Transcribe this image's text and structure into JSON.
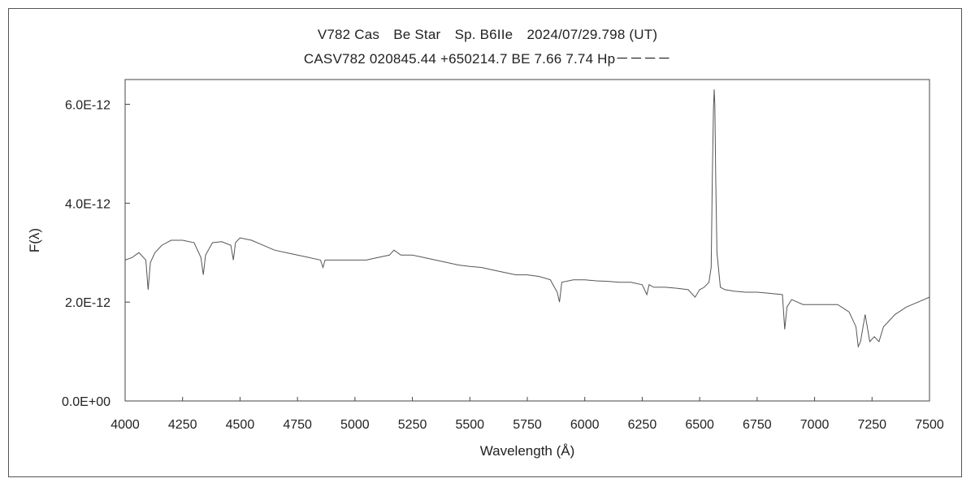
{
  "chart_data": {
    "type": "line",
    "title": "V782 Cas　Be Star　Sp. B6IIe　2024/07/29.798 (UT)",
    "subtitle": "CASV782 020845.44 +650214.7 BE 7.66 7.74 Hp－－－－",
    "xlabel": "Wavelength (Å)",
    "ylabel": "F(λ)",
    "xlim": [
      4000,
      7500
    ],
    "ylim": [
      0,
      6.5e-12
    ],
    "x_ticks": [
      4000,
      4250,
      4500,
      4750,
      5000,
      5250,
      5500,
      5750,
      6000,
      6250,
      6500,
      6750,
      7000,
      7250,
      7500
    ],
    "y_ticks": [
      0,
      2e-12,
      4e-12,
      6e-12
    ],
    "y_tick_labels": [
      "0.0E+00",
      "2.0E-12",
      "4.0E-12",
      "6.0E-12"
    ],
    "grid": false,
    "line_color": "#555555",
    "series": [
      {
        "x": [
          4000,
          4030,
          4060,
          4090,
          4100,
          4110,
          4130,
          4160,
          4200,
          4250,
          4300,
          4330,
          4340,
          4350,
          4380,
          4420,
          4460,
          4471,
          4480,
          4500,
          4550,
          4600,
          4650,
          4700,
          4750,
          4800,
          4850,
          4861,
          4870,
          4900,
          4950,
          5000,
          5050,
          5100,
          5150,
          5170,
          5200,
          5250,
          5300,
          5350,
          5400,
          5450,
          5500,
          5550,
          5600,
          5650,
          5700,
          5750,
          5800,
          5850,
          5880,
          5890,
          5900,
          5950,
          6000,
          6050,
          6100,
          6150,
          6200,
          6250,
          6270,
          6280,
          6300,
          6350,
          6400,
          6450,
          6480,
          6500,
          6520,
          6540,
          6550,
          6555,
          6560,
          6563,
          6566,
          6570,
          6575,
          6590,
          6610,
          6650,
          6700,
          6750,
          6800,
          6860,
          6870,
          6880,
          6900,
          6950,
          7000,
          7050,
          7100,
          7150,
          7180,
          7190,
          7200,
          7220,
          7240,
          7260,
          7280,
          7300,
          7350,
          7400,
          7450,
          7500
        ],
        "y": [
          2.85e-12,
          2.9e-12,
          3e-12,
          2.85e-12,
          2.25e-12,
          2.8e-12,
          3e-12,
          3.15e-12,
          3.25e-12,
          3.25e-12,
          3.2e-12,
          2.9e-12,
          2.55e-12,
          2.95e-12,
          3.2e-12,
          3.22e-12,
          3.15e-12,
          2.85e-12,
          3.2e-12,
          3.3e-12,
          3.25e-12,
          3.15e-12,
          3.05e-12,
          3e-12,
          2.95e-12,
          2.9e-12,
          2.85e-12,
          2.7e-12,
          2.85e-12,
          2.85e-12,
          2.85e-12,
          2.85e-12,
          2.85e-12,
          2.9e-12,
          2.95e-12,
          3.05e-12,
          2.95e-12,
          2.95e-12,
          2.9e-12,
          2.85e-12,
          2.8e-12,
          2.75e-12,
          2.72e-12,
          2.7e-12,
          2.65e-12,
          2.6e-12,
          2.55e-12,
          2.55e-12,
          2.52e-12,
          2.45e-12,
          2.2e-12,
          2e-12,
          2.4e-12,
          2.45e-12,
          2.45e-12,
          2.43e-12,
          2.42e-12,
          2.4e-12,
          2.4e-12,
          2.35e-12,
          2.15e-12,
          2.35e-12,
          2.3e-12,
          2.3e-12,
          2.28e-12,
          2.25e-12,
          2.1e-12,
          2.25e-12,
          2.3e-12,
          2.4e-12,
          2.7e-12,
          4.5e-12,
          5.9e-12,
          6.3e-12,
          6e-12,
          4.5e-12,
          3e-12,
          2.3e-12,
          2.25e-12,
          2.22e-12,
          2.2e-12,
          2.2e-12,
          2.18e-12,
          2.15e-12,
          1.45e-12,
          1.9e-12,
          2.05e-12,
          1.95e-12,
          1.95e-12,
          1.95e-12,
          1.95e-12,
          1.8e-12,
          1.5e-12,
          1.1e-12,
          1.2e-12,
          1.75e-12,
          1.2e-12,
          1.3e-12,
          1.2e-12,
          1.5e-12,
          1.75e-12,
          1.9e-12,
          2e-12,
          2.1e-12
        ]
      }
    ]
  }
}
